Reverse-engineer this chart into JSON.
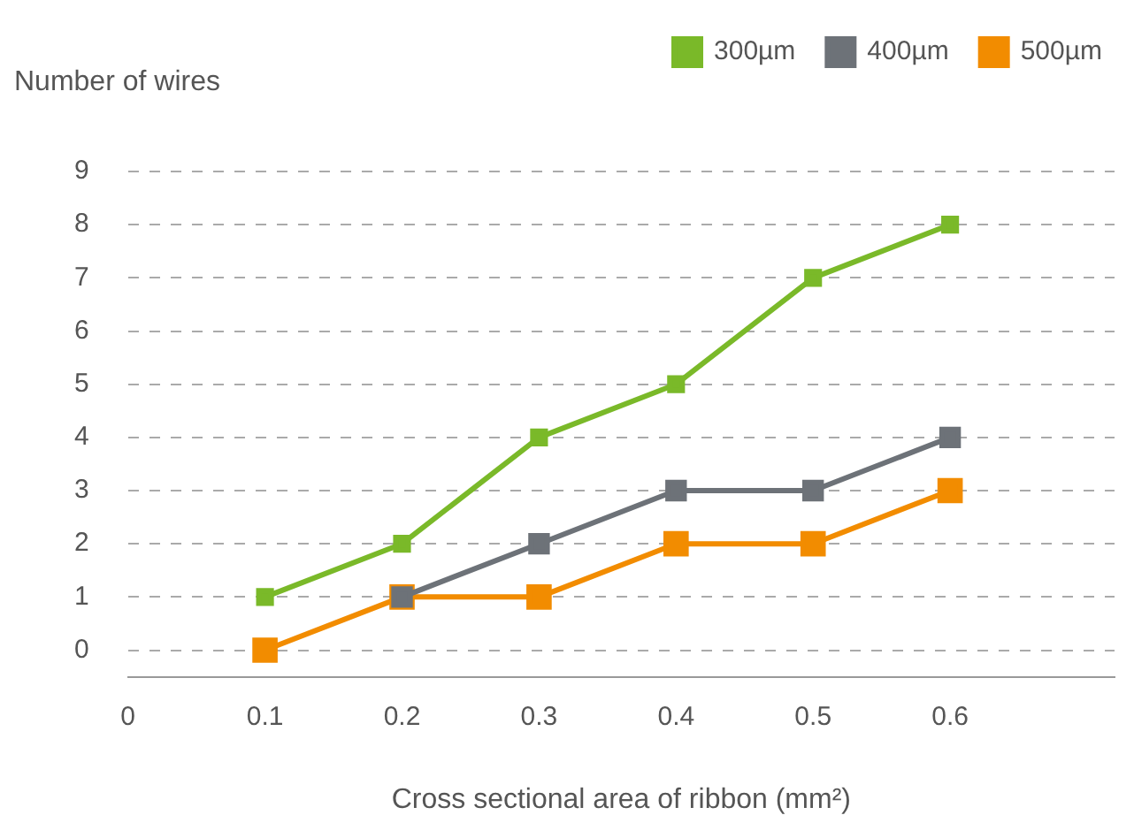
{
  "chart_data": {
    "type": "line",
    "xlabel": "Cross sectional area of ribbon (mm²)",
    "ylabel": "Number of wires",
    "x": [
      0.1,
      0.2,
      0.3,
      0.4,
      0.5,
      0.6
    ],
    "series": [
      {
        "name": "300µm",
        "color": "#7ab929",
        "values": [
          1,
          2,
          4,
          5,
          7,
          8
        ]
      },
      {
        "name": "400µm",
        "color": "#6d7278",
        "values": [
          null,
          1,
          2,
          3,
          3,
          4
        ]
      },
      {
        "name": "500µm",
        "color": "#f28c00",
        "values": [
          0,
          1,
          1,
          2,
          2,
          3
        ]
      }
    ],
    "xlim": [
      0,
      0.72
    ],
    "xticks": [
      0,
      0.1,
      0.2,
      0.3,
      0.4,
      0.5,
      0.6
    ],
    "ylim": [
      -0.5,
      9
    ],
    "yticks": [
      0,
      1,
      2,
      3,
      4,
      5,
      6,
      7,
      8,
      9
    ],
    "grid": "y",
    "legend": "top right",
    "marker": "square",
    "line_style": "solid"
  }
}
